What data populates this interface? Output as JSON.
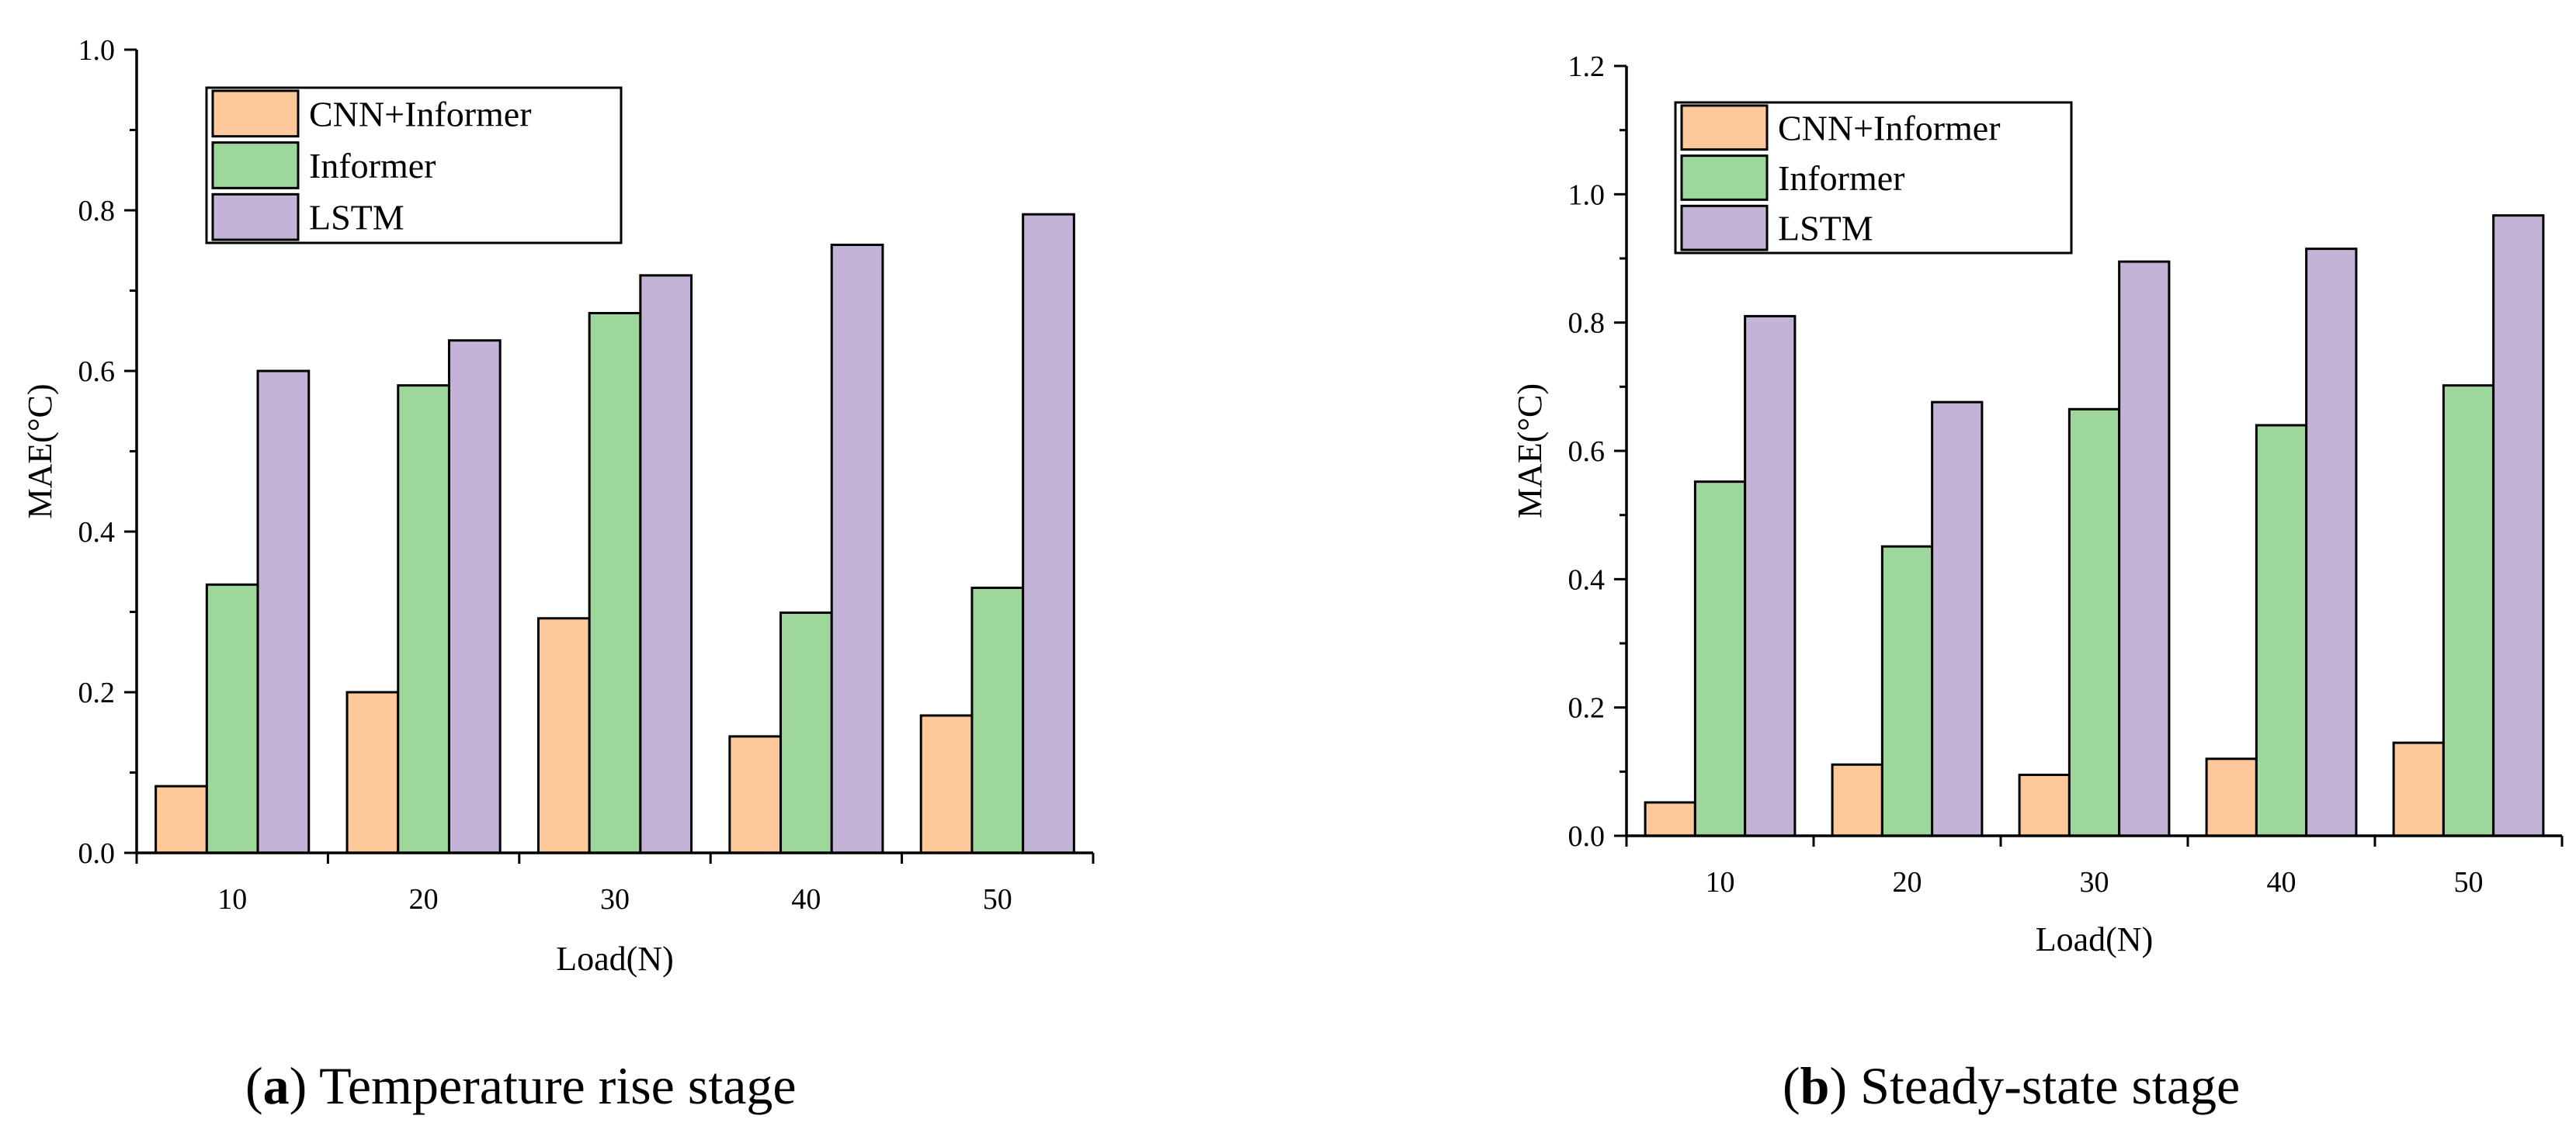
{
  "chart_data": [
    {
      "id": "a",
      "type": "bar",
      "caption_label": "a",
      "caption_text": "Temperature rise stage",
      "xlabel": "Load(N)",
      "ylabel": "MAE(°C)",
      "ylim": [
        0,
        1.0
      ],
      "yticks": [
        "0.0",
        "0.2",
        "0.4",
        "0.6",
        "0.8",
        "1.0"
      ],
      "ytick_values": [
        0,
        0.2,
        0.4,
        0.6,
        0.8,
        1.0
      ],
      "categories": [
        "10",
        "20",
        "30",
        "40",
        "50"
      ],
      "legend_position": "top-left",
      "series": [
        {
          "name": "CNN+Informer",
          "color": "#FDC99A",
          "values": [
            0.083,
            0.2,
            0.292,
            0.145,
            0.171
          ]
        },
        {
          "name": "Informer",
          "color": "#9DD79B",
          "values": [
            0.334,
            0.582,
            0.672,
            0.299,
            0.33
          ]
        },
        {
          "name": "LSTM",
          "color": "#C2B3D7",
          "values": [
            0.6,
            0.638,
            0.719,
            0.757,
            0.795
          ]
        }
      ]
    },
    {
      "id": "b",
      "type": "bar",
      "caption_label": "b",
      "caption_text": "Steady-state stage",
      "xlabel": "Load(N)",
      "ylabel": "MAE(°C)",
      "ylim": [
        0,
        1.2
      ],
      "yticks": [
        "0.0",
        "0.2",
        "0.4",
        "0.6",
        "0.8",
        "1.0",
        "1.2"
      ],
      "ytick_values": [
        0,
        0.2,
        0.4,
        0.6,
        0.8,
        1.0,
        1.2
      ],
      "categories": [
        "10",
        "20",
        "30",
        "40",
        "50"
      ],
      "legend_position": "top-left",
      "series": [
        {
          "name": "CNN+Informer",
          "color": "#FDC99A",
          "values": [
            0.052,
            0.111,
            0.095,
            0.12,
            0.145
          ]
        },
        {
          "name": "Informer",
          "color": "#9DD79B",
          "values": [
            0.552,
            0.451,
            0.665,
            0.64,
            0.702
          ]
        },
        {
          "name": "LSTM",
          "color": "#C2B3D7",
          "values": [
            0.81,
            0.676,
            0.895,
            0.915,
            0.967
          ]
        }
      ]
    }
  ]
}
